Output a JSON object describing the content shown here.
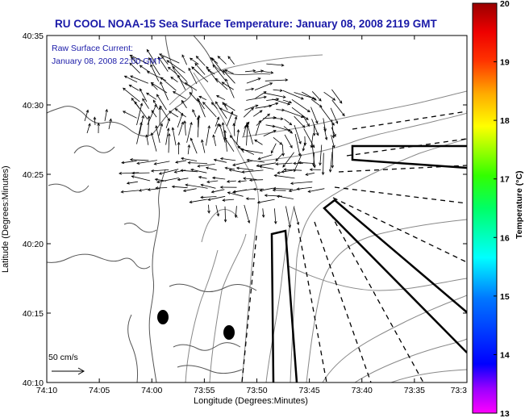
{
  "title": "RU COOL  NOAA-15  Sea Surface Temperature:  January 08, 2008 2119 GMT",
  "annotation": {
    "line1": "Raw Surface Current:",
    "line2": "January 08, 2008 22:00 GMT"
  },
  "scale_label": "50 cm/s",
  "x_axis": {
    "label": "Longitude (Degrees:Minutes)",
    "ticks": [
      "74:10",
      "74:05",
      "74:00",
      "73:55",
      "73:50",
      "73:45",
      "73:40",
      "73:35",
      "73:3"
    ]
  },
  "y_axis": {
    "label": "Latitude (Degrees:Minutes)",
    "ticks": [
      "40:10",
      "40:15",
      "40:20",
      "40:25",
      "40:30",
      "40:35"
    ]
  },
  "colorbar": {
    "label": "Temperature (°C)",
    "ticks": [
      "13",
      "14",
      "15",
      "16",
      "17",
      "18",
      "19",
      "20"
    ],
    "colors": [
      "#ff00ff",
      "#7a00ff",
      "#0000ff",
      "#0088ff",
      "#00ffff",
      "#00ff88",
      "#00ff00",
      "#88ff00",
      "#ffff00",
      "#ffaa00",
      "#ff5500",
      "#ff0000",
      "#cc0000",
      "#990000"
    ]
  }
}
